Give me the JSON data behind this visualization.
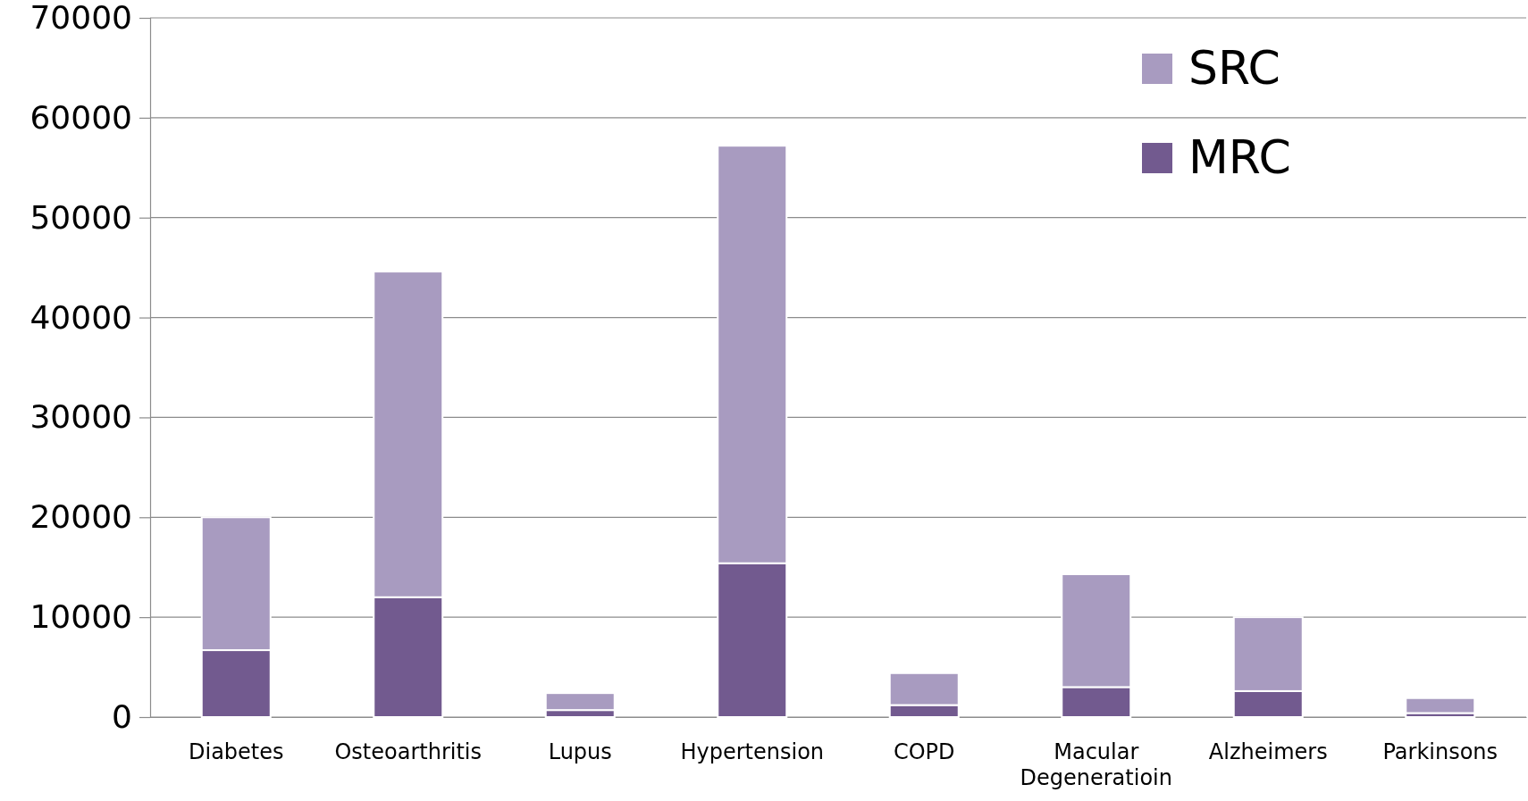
{
  "chart_data": {
    "type": "bar",
    "stacked": true,
    "categories": [
      "Diabetes",
      "Osteoarthritis",
      "Lupus",
      "Hypertension",
      "COPD",
      "Macular Degeneratioin",
      "Alzheimers",
      "Parkinsons"
    ],
    "series": [
      {
        "name": "MRC",
        "color": "#725a8f",
        "values": [
          6700,
          12000,
          700,
          15400,
          1200,
          3000,
          2600,
          400
        ]
      },
      {
        "name": "SRC",
        "color": "#a89bc0",
        "values": [
          13300,
          32600,
          1700,
          41800,
          3200,
          11300,
          7400,
          1500
        ]
      }
    ],
    "ylim": [
      0,
      70000
    ],
    "yticks": [
      0,
      10000,
      20000,
      30000,
      40000,
      50000,
      60000,
      70000
    ],
    "grid": "y",
    "legend": "top right"
  }
}
